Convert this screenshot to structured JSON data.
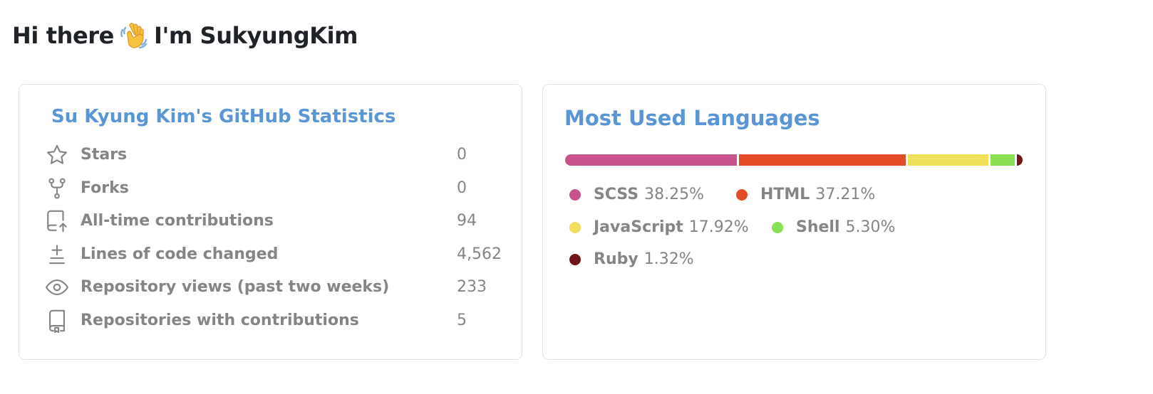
{
  "heading": {
    "before": "Hi there",
    "after": "I'm SukyungKim",
    "emoji_icon": "waving-hand-icon"
  },
  "stats_card": {
    "title": "Su Kyung Kim's GitHub Statistics",
    "rows": [
      {
        "icon": "star-icon",
        "label": "Stars",
        "value": "0"
      },
      {
        "icon": "fork-icon",
        "label": "Forks",
        "value": "0"
      },
      {
        "icon": "contributions-icon",
        "label": "All-time contributions",
        "value": "94"
      },
      {
        "icon": "diff-icon",
        "label": "Lines of code changed",
        "value": "4,562"
      },
      {
        "icon": "eye-icon",
        "label": "Repository views (past two weeks)",
        "value": "233"
      },
      {
        "icon": "repo-icon",
        "label": "Repositories with contributions",
        "value": "5"
      }
    ]
  },
  "languages_card": {
    "title": "Most Used Languages",
    "languages": [
      {
        "name": "SCSS",
        "percent": "38.25%",
        "share": 38.25,
        "color": "#c6538c"
      },
      {
        "name": "HTML",
        "percent": "37.21%",
        "share": 37.21,
        "color": "#e34c26"
      },
      {
        "name": "JavaScript",
        "percent": "17.92%",
        "share": 17.92,
        "color": "#f1e05a"
      },
      {
        "name": "Shell",
        "percent": "5.30%",
        "share": 5.3,
        "color": "#89e051"
      },
      {
        "name": "Ruby",
        "percent": "1.32%",
        "share": 1.32,
        "color": "#701516"
      }
    ]
  }
}
